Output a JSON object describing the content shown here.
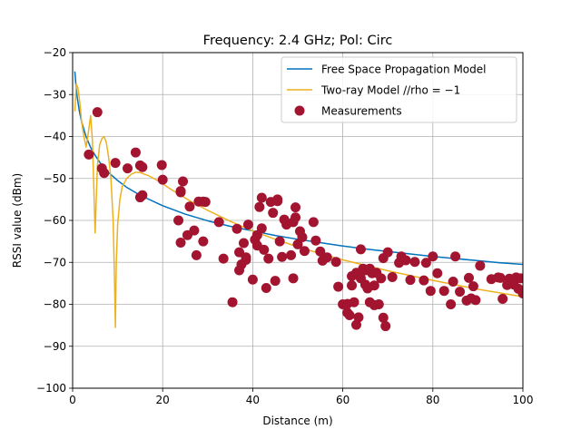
{
  "chart_data": {
    "type": "line",
    "title": "Frequency: 2.4 GHz; Pol: Circ",
    "xlabel": "Distance (m)",
    "ylabel": "RSSI value (dBm)",
    "xlim": [
      0,
      100
    ],
    "ylim": [
      -100,
      -20
    ],
    "xticks": [
      0,
      20,
      40,
      60,
      80,
      100
    ],
    "yticks": [
      -100,
      -90,
      -80,
      -70,
      -60,
      -50,
      -40,
      -30,
      -20
    ],
    "grid": true,
    "legend_position": "top-right",
    "series": [
      {
        "name": "Free Space Propagation Model",
        "kind": "line",
        "color": "#0072bd",
        "x": [
          0.5,
          0.75,
          1,
          1.5,
          2,
          3,
          4,
          5,
          6,
          8,
          10,
          12,
          15,
          20,
          25,
          30,
          35,
          40,
          45,
          50,
          55,
          60,
          65,
          70,
          75,
          80,
          85,
          90,
          95,
          100
        ],
        "y": [
          -24.5,
          -28.0,
          -30.5,
          -34.0,
          -36.5,
          -40.1,
          -42.6,
          -44.5,
          -46.1,
          -48.6,
          -50.5,
          -52.1,
          -54.0,
          -56.5,
          -58.5,
          -60.1,
          -61.4,
          -62.5,
          -63.6,
          -64.5,
          -65.3,
          -66.1,
          -66.8,
          -67.4,
          -68.0,
          -68.6,
          -69.1,
          -69.6,
          -70.1,
          -70.5
        ]
      },
      {
        "name": "Two-ray Model //rho = −1",
        "kind": "line",
        "color": "#edb120",
        "x": [
          0.5,
          0.8,
          1.2,
          1.6,
          2.0,
          2.5,
          3.0,
          3.5,
          4.0,
          4.4,
          4.7,
          5.0,
          5.5,
          6.0,
          6.5,
          7.0,
          7.5,
          8.0,
          8.5,
          9.0,
          9.3,
          9.5,
          9.7,
          10.0,
          10.5,
          11.0,
          12.0,
          13.0,
          14.0,
          15.0,
          17.0,
          19.0,
          22.0,
          26.0,
          30.0,
          35.0,
          40.0,
          45.0,
          50.0,
          55.0,
          60.0,
          70.0,
          80.0,
          90.0,
          100.0
        ],
        "y": [
          -34.0,
          -27.5,
          -28.5,
          -32.0,
          -36.5,
          -40.0,
          -42.5,
          -39.0,
          -35.0,
          -41.0,
          -52.0,
          -63.0,
          -47.0,
          -42.0,
          -40.5,
          -40.0,
          -41.5,
          -45.0,
          -50.0,
          -60.0,
          -74.0,
          -85.5,
          -70.0,
          -61.0,
          -55.0,
          -52.0,
          -50.0,
          -49.0,
          -48.5,
          -48.6,
          -49.4,
          -50.6,
          -52.7,
          -55.3,
          -57.6,
          -60.2,
          -62.5,
          -64.5,
          -66.3,
          -67.9,
          -69.4,
          -72.0,
          -74.3,
          -76.4,
          -78.2
        ]
      },
      {
        "name": "Measurements",
        "kind": "scatter",
        "color": "#a2142f",
        "x": [
          3.6,
          5.5,
          6.5,
          7.0,
          9.5,
          12.2,
          14.0,
          15.0,
          15.5,
          15.0,
          15.5,
          19.8,
          20.0,
          23.5,
          24.0,
          24.5,
          24.0,
          24.0,
          25.5,
          26.0,
          27.0,
          27.5,
          28.0,
          29.0,
          29.5,
          29.0,
          32.5,
          33.5,
          35.5,
          36.5,
          37.0,
          37.5,
          37.0,
          38.0,
          38.5,
          38.5,
          39.0,
          40.0,
          40.5,
          41.0,
          41.0,
          41.5,
          42.0,
          42.0,
          42.5,
          43.0,
          43.5,
          44.0,
          44.5,
          45.0,
          45.5,
          45.5,
          46.0,
          46.5,
          47.0,
          47.5,
          48.5,
          49.0,
          49.0,
          49.5,
          49.5,
          50.0,
          50.5,
          51.0,
          51.5,
          53.5,
          54.0,
          55.0,
          55.5,
          56.0,
          56.5,
          58.5,
          59.0,
          60.0,
          61.0,
          61.0,
          61.5,
          62.0,
          62.0,
          62.5,
          63.0,
          63.0,
          63.5,
          64.0,
          64.0,
          64.5,
          65.0,
          65.0,
          65.5,
          66.0,
          66.0,
          66.5,
          67.0,
          67.0,
          67.5,
          68.0,
          68.5,
          69.0,
          69.0,
          69.5,
          70.0,
          71.0,
          72.5,
          73.0,
          74.0,
          75.0,
          76.0,
          78.0,
          78.5,
          79.5,
          80.0,
          81.0,
          82.5,
          84.0,
          84.5,
          85.0,
          86.0,
          87.5,
          88.0,
          88.5,
          89.0,
          89.5,
          90.5,
          93.0,
          94.5,
          95.0,
          95.5,
          96.5,
          97.0,
          97.5,
          98.0,
          98.5,
          99.0,
          99.5,
          100.0
        ],
        "y": [
          -44.3,
          -34.2,
          -47.6,
          -48.7,
          -46.3,
          -47.6,
          -43.8,
          -46.9,
          -47.3,
          -54.5,
          -54.0,
          -46.8,
          -50.3,
          -60.0,
          -53.3,
          -50.7,
          -65.3,
          -53.0,
          -63.5,
          -56.7,
          -62.4,
          -68.3,
          -55.5,
          -65.0,
          -55.6,
          -55.5,
          -60.4,
          -69.1,
          -79.5,
          -62.0,
          -67.6,
          -70.5,
          -71.9,
          -65.4,
          -68.8,
          -69.4,
          -61.0,
          -74.1,
          -64.6,
          -66.0,
          -63.5,
          -56.8,
          -54.6,
          -61.9,
          -67.0,
          -76.1,
          -69.1,
          -55.6,
          -58.2,
          -74.4,
          -55.4,
          -55.0,
          -65.0,
          -68.7,
          -59.8,
          -61.0,
          -68.3,
          -73.8,
          -60.4,
          -56.9,
          -59.3,
          -65.7,
          -62.6,
          -64.0,
          -67.3,
          -60.4,
          -64.8,
          -67.4,
          -69.6,
          -69.0,
          -68.8,
          -69.9,
          -75.8,
          -80.0,
          -79.9,
          -82.0,
          -82.6,
          -75.5,
          -73.3,
          -79.5,
          -72.5,
          -84.9,
          -83.1,
          -66.9,
          -73.8,
          -71.5,
          -75.3,
          -71.9,
          -76.2,
          -71.5,
          -79.5,
          -72.6,
          -80.2,
          -75.5,
          -72.5,
          -80.0,
          -73.8,
          -83.2,
          -69.0,
          -85.2,
          -67.6,
          -73.5,
          -70.1,
          -68.6,
          -69.5,
          -74.2,
          -69.9,
          -74.3,
          -70.1,
          -76.8,
          -68.6,
          -72.6,
          -76.8,
          -80.0,
          -74.6,
          -68.6,
          -77.0,
          -79.1,
          -73.7,
          -78.6,
          -75.7,
          -79.0,
          -70.8,
          -74.0,
          -73.6,
          -73.7,
          -78.7,
          -75.4,
          -73.9,
          -74.4,
          -75.3,
          -73.6,
          -76.3,
          -73.8,
          -77.4
        ]
      }
    ]
  }
}
